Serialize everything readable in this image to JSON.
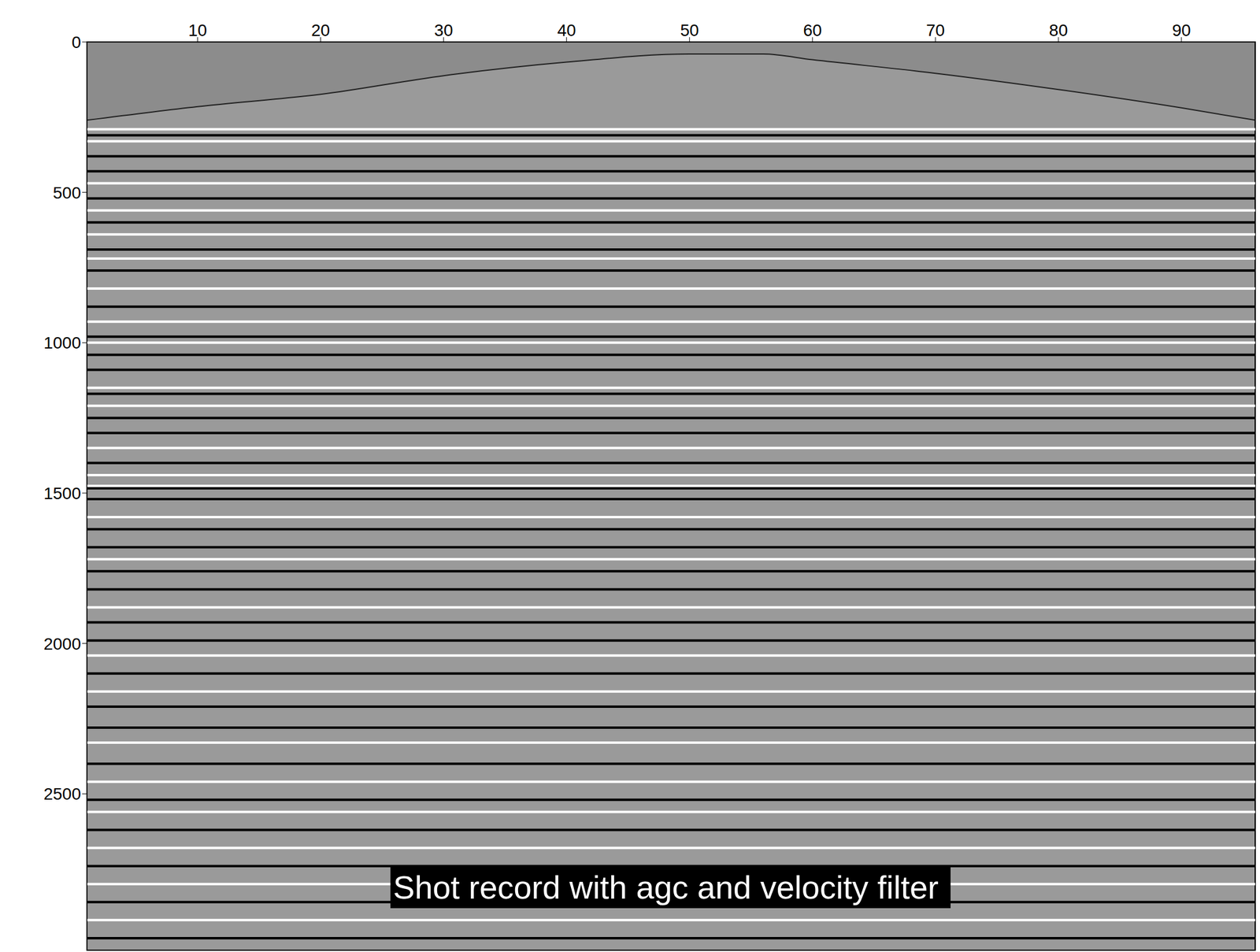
{
  "chart_data": {
    "type": "seismic_shot_record",
    "title": "Shot record with agc and velocity filter",
    "xlim": [
      1,
      96
    ],
    "xticks": [
      10,
      20,
      30,
      40,
      50,
      60,
      70,
      80,
      90
    ],
    "ylim": [
      0,
      3020
    ],
    "yticks": [
      0,
      500,
      1000,
      1500,
      2000,
      2500
    ],
    "first_break": {
      "x": [
        1,
        10,
        20,
        30,
        40,
        50,
        56,
        60,
        70,
        80,
        90,
        96
      ],
      "values": [
        260,
        215,
        174,
        112,
        67,
        40,
        40,
        59,
        104,
        158,
        219,
        260
      ]
    },
    "reflectors": [
      {
        "time": 290,
        "color": "#ffffff"
      },
      {
        "time": 310,
        "color": "#000000"
      },
      {
        "time": 330,
        "color": "#ffffff"
      },
      {
        "time": 380,
        "color": "#000000"
      },
      {
        "time": 430,
        "color": "#000000"
      },
      {
        "time": 470,
        "color": "#ffffff"
      },
      {
        "time": 520,
        "color": "#000000"
      },
      {
        "time": 560,
        "color": "#ffffff"
      },
      {
        "time": 600,
        "color": "#000000"
      },
      {
        "time": 640,
        "color": "#ffffff"
      },
      {
        "time": 690,
        "color": "#000000"
      },
      {
        "time": 720,
        "color": "#ffffff"
      },
      {
        "time": 760,
        "color": "#000000"
      },
      {
        "time": 820,
        "color": "#ffffff"
      },
      {
        "time": 880,
        "color": "#000000"
      },
      {
        "time": 930,
        "color": "#ffffff"
      },
      {
        "time": 980,
        "color": "#000000"
      },
      {
        "time": 1000,
        "color": "#ffffff"
      },
      {
        "time": 1040,
        "color": "#000000"
      },
      {
        "time": 1090,
        "color": "#000000"
      },
      {
        "time": 1150,
        "color": "#ffffff"
      },
      {
        "time": 1170,
        "color": "#000000"
      },
      {
        "time": 1210,
        "color": "#ffffff"
      },
      {
        "time": 1250,
        "color": "#000000"
      },
      {
        "time": 1300,
        "color": "#000000"
      },
      {
        "time": 1350,
        "color": "#ffffff"
      },
      {
        "time": 1400,
        "color": "#000000"
      },
      {
        "time": 1440,
        "color": "#ffffff"
      },
      {
        "time": 1476,
        "color": "#ffffff"
      },
      {
        "time": 1484,
        "color": "#000000"
      },
      {
        "time": 1520,
        "color": "#000000"
      },
      {
        "time": 1580,
        "color": "#ffffff"
      },
      {
        "time": 1620,
        "color": "#000000"
      },
      {
        "time": 1680,
        "color": "#000000"
      },
      {
        "time": 1720,
        "color": "#ffffff"
      },
      {
        "time": 1760,
        "color": "#000000"
      },
      {
        "time": 1820,
        "color": "#000000"
      },
      {
        "time": 1880,
        "color": "#ffffff"
      },
      {
        "time": 1930,
        "color": "#000000"
      },
      {
        "time": 1990,
        "color": "#000000"
      },
      {
        "time": 2040,
        "color": "#ffffff"
      },
      {
        "time": 2100,
        "color": "#000000"
      },
      {
        "time": 2160,
        "color": "#ffffff"
      },
      {
        "time": 2210,
        "color": "#000000"
      },
      {
        "time": 2280,
        "color": "#000000"
      },
      {
        "time": 2330,
        "color": "#ffffff"
      },
      {
        "time": 2400,
        "color": "#000000"
      },
      {
        "time": 2460,
        "color": "#ffffff"
      },
      {
        "time": 2520,
        "color": "#000000"
      },
      {
        "time": 2560,
        "color": "#ffffff"
      },
      {
        "time": 2620,
        "color": "#000000"
      },
      {
        "time": 2680,
        "color": "#ffffff"
      },
      {
        "time": 2740,
        "color": "#000000"
      },
      {
        "time": 2800,
        "color": "#ffffff"
      },
      {
        "time": 2860,
        "color": "#000000"
      },
      {
        "time": 2920,
        "color": "#ffffff"
      },
      {
        "time": 2980,
        "color": "#000000"
      }
    ]
  }
}
